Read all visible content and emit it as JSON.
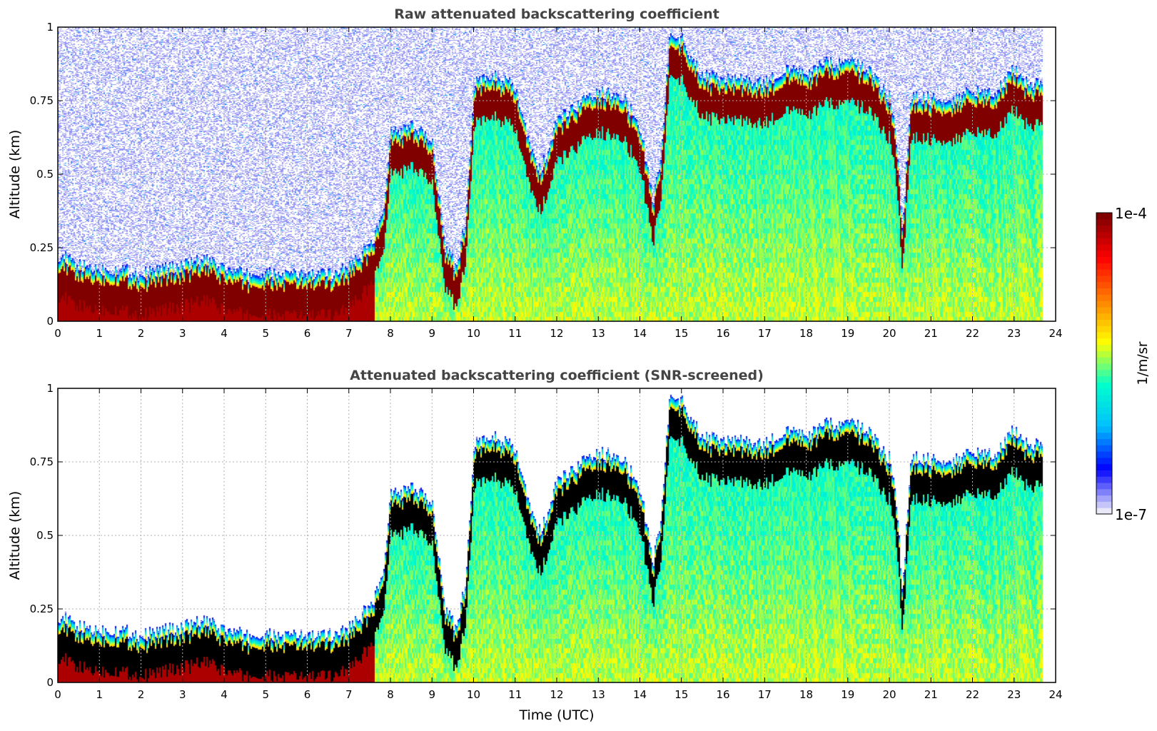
{
  "chart_data": [
    {
      "type": "heatmap",
      "title": "Raw attenuated backscattering coefficient",
      "ylabel": "Altitude (km)",
      "xlabel": "",
      "xlim": [
        0,
        24
      ],
      "ylim": [
        0,
        1
      ],
      "xticks": [
        "0",
        "1",
        "2",
        "3",
        "4",
        "5",
        "6",
        "7",
        "8",
        "9",
        "10",
        "11",
        "12",
        "13",
        "14",
        "15",
        "16",
        "17",
        "18",
        "19",
        "20",
        "21",
        "22",
        "23",
        "24"
      ],
      "yticks": [
        "0",
        "0.25",
        "0.5",
        "0.75",
        "1"
      ],
      "grid": true,
      "screened": false
    },
    {
      "type": "heatmap",
      "title": "Attenuated backscattering coefficient (SNR-screened)",
      "ylabel": "Altitude (km)",
      "xlabel": "Time (UTC)",
      "xlim": [
        0,
        24
      ],
      "ylim": [
        0,
        1
      ],
      "xticks": [
        "0",
        "1",
        "2",
        "3",
        "4",
        "5",
        "6",
        "7",
        "8",
        "9",
        "10",
        "11",
        "12",
        "13",
        "14",
        "15",
        "16",
        "17",
        "18",
        "19",
        "20",
        "21",
        "22",
        "23",
        "24"
      ],
      "yticks": [
        "0",
        "0.25",
        "0.5",
        "0.75",
        "1"
      ],
      "grid": true,
      "screened": true
    }
  ],
  "colorbar": {
    "label": "1/m/sr",
    "max_label": "1e-4",
    "min_label": "1e-7",
    "scale": "log",
    "colormap": [
      "#e8e8f8",
      "#0000ff",
      "#00bfff",
      "#00ffcc",
      "#ffff00",
      "#ff8000",
      "#ff0000",
      "#800000"
    ]
  },
  "features": {
    "data_end_hour": 23.67,
    "cloud_layer_top_km": [
      [
        0.0,
        0.17
      ],
      [
        0.5,
        0.13
      ],
      [
        1.0,
        0.12
      ],
      [
        1.5,
        0.12
      ],
      [
        2.0,
        0.1
      ],
      [
        2.5,
        0.12
      ],
      [
        3.0,
        0.13
      ],
      [
        3.5,
        0.15
      ],
      [
        4.0,
        0.12
      ],
      [
        4.5,
        0.1
      ],
      [
        5.0,
        0.1
      ],
      [
        5.5,
        0.1
      ],
      [
        6.0,
        0.1
      ],
      [
        6.5,
        0.1
      ],
      [
        7.0,
        0.13
      ],
      [
        7.5,
        0.2
      ],
      [
        7.8,
        0.3
      ],
      [
        8.0,
        0.58
      ],
      [
        8.5,
        0.6
      ],
      [
        9.0,
        0.55
      ],
      [
        9.3,
        0.2
      ],
      [
        9.6,
        0.12
      ],
      [
        9.8,
        0.3
      ],
      [
        10.0,
        0.75
      ],
      [
        10.5,
        0.78
      ],
      [
        11.0,
        0.73
      ],
      [
        11.3,
        0.55
      ],
      [
        11.6,
        0.45
      ],
      [
        12.0,
        0.62
      ],
      [
        12.5,
        0.68
      ],
      [
        13.0,
        0.72
      ],
      [
        13.5,
        0.72
      ],
      [
        14.0,
        0.6
      ],
      [
        14.3,
        0.35
      ],
      [
        14.5,
        0.5
      ],
      [
        14.7,
        0.92
      ],
      [
        15.0,
        0.9
      ],
      [
        15.5,
        0.77
      ],
      [
        16.0,
        0.77
      ],
      [
        16.5,
        0.76
      ],
      [
        17.0,
        0.75
      ],
      [
        17.5,
        0.8
      ],
      [
        18.0,
        0.78
      ],
      [
        18.5,
        0.82
      ],
      [
        19.0,
        0.82
      ],
      [
        19.5,
        0.8
      ],
      [
        20.0,
        0.7
      ],
      [
        20.2,
        0.5
      ],
      [
        20.3,
        0.25
      ],
      [
        20.5,
        0.7
      ],
      [
        21.0,
        0.7
      ],
      [
        21.5,
        0.7
      ],
      [
        22.0,
        0.72
      ],
      [
        22.5,
        0.72
      ],
      [
        23.0,
        0.8
      ],
      [
        23.3,
        0.75
      ],
      [
        23.67,
        0.75
      ]
    ]
  }
}
